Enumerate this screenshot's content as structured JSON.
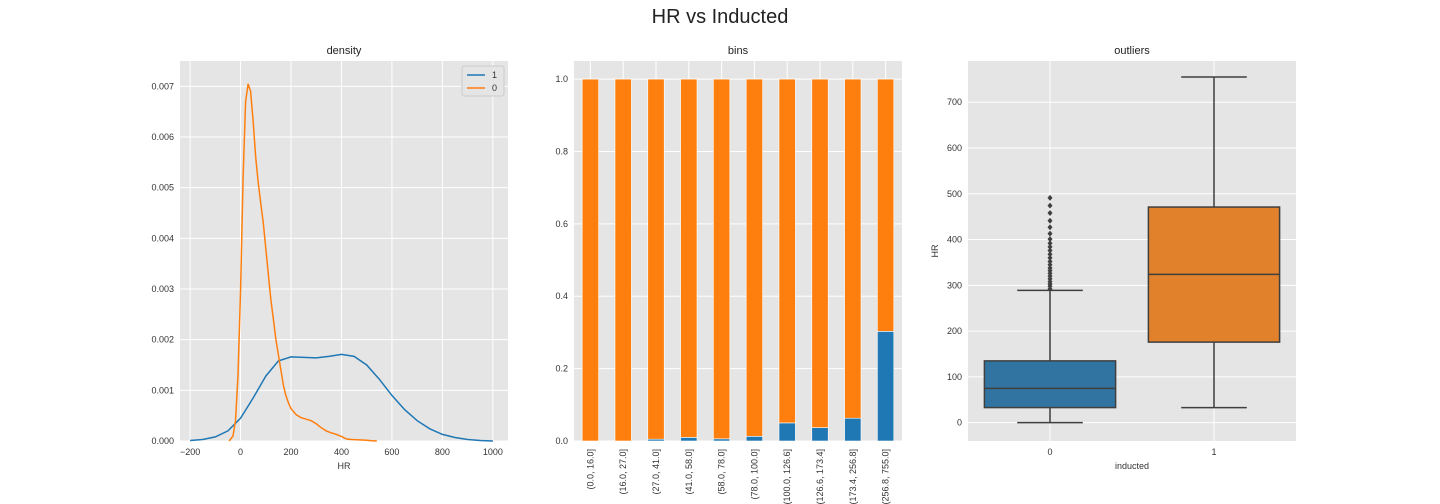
{
  "figure": {
    "title": "HR vs Inducted"
  },
  "colors": {
    "blue": "#1f77b4",
    "orange": "#ff7f0e",
    "box_blue": "#3274a1",
    "box_orange": "#e1812c",
    "panel_bg": "#e5e5e5",
    "grid": "#ffffff"
  },
  "chart_data": [
    {
      "type": "line",
      "title": "density",
      "xlabel": "HR",
      "ylabel": "",
      "xlim": [
        -240,
        1060
      ],
      "ylim": [
        0,
        0.0075
      ],
      "xticks": [
        -200,
        0,
        200,
        400,
        600,
        800,
        1000
      ],
      "xtick_labels": [
        "−200",
        "0",
        "200",
        "400",
        "600",
        "800",
        "1000"
      ],
      "yticks": [
        0,
        0.001,
        0.002,
        0.003,
        0.004,
        0.005,
        0.006,
        0.007
      ],
      "ytick_labels": [
        "0.000",
        "0.001",
        "0.002",
        "0.003",
        "0.004",
        "0.005",
        "0.006",
        "0.007"
      ],
      "legend_placement": "top-right",
      "grid": true,
      "series": [
        {
          "name": "1",
          "color": "#1f77b4",
          "x": [
            -200,
            -150,
            -100,
            -50,
            0,
            50,
            100,
            150,
            200,
            250,
            300,
            350,
            400,
            450,
            500,
            550,
            600,
            650,
            700,
            750,
            800,
            850,
            900,
            950,
            1000
          ],
          "y": [
            1e-05,
            3e-05,
            8e-05,
            0.0002,
            0.00045,
            0.00085,
            0.00128,
            0.00158,
            0.00166,
            0.00165,
            0.00164,
            0.00167,
            0.00171,
            0.00167,
            0.0015,
            0.00122,
            0.0009,
            0.00062,
            0.0004,
            0.00024,
            0.00013,
            7e-05,
            3e-05,
            1e-05,
            0.0
          ]
        },
        {
          "name": "0",
          "color": "#ff7f0e",
          "x": [
            -45,
            -30,
            -20,
            -10,
            0,
            10,
            20,
            30,
            40,
            50,
            60,
            70,
            80,
            90,
            100,
            110,
            120,
            130,
            140,
            150,
            160,
            170,
            180,
            190,
            200,
            220,
            240,
            260,
            280,
            300,
            320,
            340,
            360,
            380,
            400,
            420,
            440,
            460,
            480,
            500,
            520,
            540
          ],
          "y": [
            0.0,
            0.0001,
            0.0004,
            0.0013,
            0.003,
            0.0052,
            0.0067,
            0.00705,
            0.0069,
            0.0063,
            0.0056,
            0.0051,
            0.0047,
            0.0043,
            0.0038,
            0.0033,
            0.0028,
            0.0024,
            0.002,
            0.0017,
            0.0014,
            0.0011,
            0.00089,
            0.00075,
            0.00064,
            0.00052,
            0.00046,
            0.00043,
            0.0004,
            0.00034,
            0.00026,
            0.0002,
            0.00016,
            0.00013,
            9e-05,
            4e-05,
            3e-05,
            2.5e-05,
            2e-05,
            1.5e-05,
            5e-06,
            0.0
          ]
        }
      ]
    },
    {
      "type": "bar",
      "stacked": true,
      "title": "bins",
      "xlabel": "",
      "ylabel": "",
      "ylim": [
        0,
        1.05
      ],
      "yticks": [
        0,
        0.2,
        0.4,
        0.6,
        0.8,
        1.0
      ],
      "ytick_labels": [
        "0.0",
        "0.2",
        "0.4",
        "0.6",
        "0.8",
        "1.0"
      ],
      "grid": true,
      "categories": [
        "(0.0, 16.0]",
        "(16.0, 27.0]",
        "(27.0, 41.0]",
        "(41.0, 58.0]",
        "(58.0, 78.0]",
        "(78.0, 100.0]",
        "(100.0, 126.6]",
        "(126.6, 173.4]",
        "(173.4, 256.8]",
        "(256.8, 755.0]"
      ],
      "series": [
        {
          "color": "#1f77b4",
          "values": [
            0.0,
            0.0,
            0.005,
            0.01,
            0.006,
            0.013,
            0.05,
            0.037,
            0.063,
            0.303
          ]
        },
        {
          "color": "#ff7f0e",
          "values": [
            1.0,
            1.0,
            0.995,
            0.99,
            0.994,
            0.987,
            0.95,
            0.963,
            0.937,
            0.697
          ]
        }
      ]
    },
    {
      "type": "box",
      "title": "outliers",
      "xlabel": "inducted",
      "ylabel": "HR",
      "ylim": [
        -40,
        790
      ],
      "yticks": [
        0,
        100,
        200,
        300,
        400,
        500,
        600,
        700
      ],
      "ytick_labels": [
        "0",
        "100",
        "200",
        "300",
        "400",
        "500",
        "600",
        "700"
      ],
      "grid": true,
      "categories": [
        "0",
        "1"
      ],
      "boxes": [
        {
          "category": "0",
          "color": "#3274a1",
          "whisker_low": 0,
          "q1": 33,
          "median": 75,
          "q3": 135,
          "whisker_high": 289,
          "outliers": [
            292,
            298,
            303,
            308,
            314,
            320,
            326,
            332,
            338,
            345,
            352,
            360,
            368,
            376,
            384,
            392,
            401,
            413,
            427,
            441,
            458,
            474,
            491
          ]
        },
        {
          "category": "1",
          "color": "#e1812c",
          "whisker_low": 33,
          "q1": 176,
          "median": 324,
          "q3": 471,
          "whisker_high": 755,
          "outliers": []
        }
      ]
    }
  ]
}
